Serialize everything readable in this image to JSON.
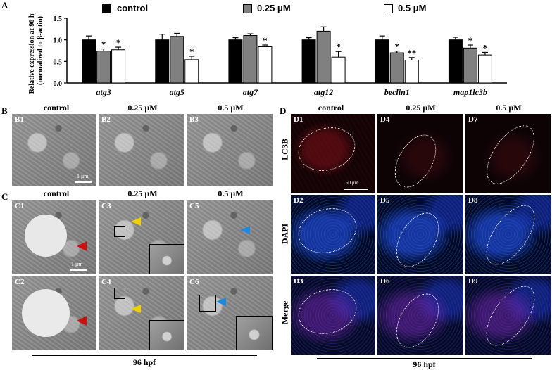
{
  "panel_letters": {
    "a": "A",
    "b": "B",
    "c": "C",
    "d": "D"
  },
  "legend": {
    "control": "control",
    "low": "0.25 μM",
    "high": "0.5 μM"
  },
  "colors": {
    "control": "#000000",
    "low": "#808080",
    "high": "#ffffff"
  },
  "chart_data": {
    "type": "bar",
    "ylabel": "Relative expression at 96 hpf\n(normalized to β-actin)",
    "ylim": [
      0,
      1.5
    ],
    "yticks": [
      "0.0",
      "0.5",
      "1.0",
      "1.5"
    ],
    "categories": [
      "atg3",
      "atg5",
      "atg7",
      "atg12",
      "beclin1",
      "map1lc3b"
    ],
    "series": [
      {
        "name": "control",
        "values": [
          1.0,
          1.0,
          1.0,
          1.0,
          1.0,
          1.0
        ],
        "errors": [
          0.09,
          0.13,
          0.05,
          0.05,
          0.09,
          0.06
        ]
      },
      {
        "name": "0.25 μM",
        "values": [
          0.74,
          1.08,
          1.1,
          1.2,
          0.7,
          0.81
        ],
        "errors": [
          0.05,
          0.07,
          0.04,
          0.1,
          0.04,
          0.07
        ]
      },
      {
        "name": "0.5 μM",
        "values": [
          0.77,
          0.54,
          0.84,
          0.6,
          0.53,
          0.65
        ],
        "errors": [
          0.06,
          0.08,
          0.04,
          0.13,
          0.06,
          0.06
        ]
      }
    ],
    "significance": [
      [
        "",
        "*",
        "*"
      ],
      [
        "",
        "",
        "*"
      ],
      [
        "",
        "",
        "*"
      ],
      [
        "",
        "",
        "*"
      ],
      [
        "",
        "*",
        "**"
      ],
      [
        "",
        "*",
        "*"
      ]
    ]
  },
  "b": {
    "headers": [
      "control",
      "0.25 μM",
      "0.5 μM"
    ],
    "sub": [
      "B1",
      "B2",
      "B3"
    ],
    "scale": "1 μm"
  },
  "c": {
    "headers": [
      "control",
      "0.25 μM",
      "0.5 μM"
    ],
    "sub_top": [
      "C1",
      "C3",
      "C5"
    ],
    "sub_bottom": [
      "C2",
      "C4",
      "C6"
    ],
    "scale": "1 μm",
    "footer": "96 hpf"
  },
  "d": {
    "headers": [
      "control",
      "0.25 μM",
      "0.5 μM"
    ],
    "rows": [
      "LC3B",
      "DAPI",
      "Merge"
    ],
    "sub": [
      [
        "D1",
        "D4",
        "D7"
      ],
      [
        "D2",
        "D5",
        "D8"
      ],
      [
        "D3",
        "D6",
        "D9"
      ]
    ],
    "scale": "50 μm",
    "footer": "96 hpf"
  }
}
